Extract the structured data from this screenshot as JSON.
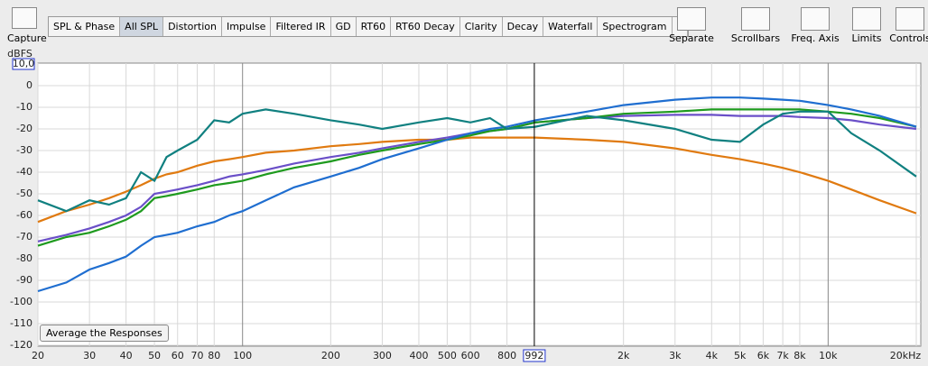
{
  "toolbar": {
    "capture": "Capture",
    "tabs": [
      "SPL & Phase",
      "All SPL",
      "Distortion",
      "Impulse",
      "Filtered IR",
      "GD",
      "RT60",
      "RT60 Decay",
      "Clarity",
      "Decay",
      "Waterfall",
      "Spectrogram",
      "»"
    ],
    "active_tab": 1,
    "tools": [
      "Separate",
      "Scrollbars",
      "Freq. Axis",
      "Limits",
      "Controls"
    ]
  },
  "button": "Average the Responses",
  "chart_data": {
    "type": "line",
    "y_label": "dBFS",
    "log_x": true,
    "grid": true,
    "xlim": [
      20,
      20000
    ],
    "ylim": [
      -120,
      10
    ],
    "yticks": [
      -120,
      -110,
      -100,
      -90,
      -80,
      -70,
      -60,
      -50,
      -40,
      -30,
      -20,
      -10,
      0,
      {
        "value": 10,
        "label": "10,0"
      }
    ],
    "xticks": [
      20,
      30,
      40,
      50,
      60,
      70,
      80,
      100,
      200,
      300,
      400,
      500,
      600,
      800,
      {
        "value": 2000,
        "label": "2k"
      },
      {
        "value": 3000,
        "label": "3k"
      },
      {
        "value": 4000,
        "label": "4k"
      },
      {
        "value": 5000,
        "label": "5k"
      },
      {
        "value": 6000,
        "label": "6k"
      },
      {
        "value": 7000,
        "label": "7k"
      },
      {
        "value": 8000,
        "label": "8k"
      },
      {
        "value": 10000,
        "label": "10k"
      },
      {
        "value": 20000,
        "label": "20kHz"
      }
    ],
    "cursor": 992,
    "x": [
      20,
      25,
      30,
      35,
      40,
      45,
      50,
      55,
      60,
      70,
      80,
      90,
      100,
      120,
      150,
      200,
      250,
      300,
      400,
      500,
      600,
      700,
      800,
      1000,
      1500,
      2000,
      3000,
      4000,
      5000,
      6000,
      7000,
      8000,
      10000,
      12000,
      15000,
      20000
    ],
    "series": [
      {
        "color": "#e07a10",
        "values": [
          -63,
          -58,
          -55,
          -52,
          -49,
          -46,
          -43,
          -41,
          -40,
          -37,
          -35,
          -34,
          -33,
          -31,
          -30,
          -28,
          -27,
          -26,
          -25,
          -25,
          -24,
          -24,
          -24,
          -24,
          -25,
          -26,
          -29,
          -32,
          -34,
          -36,
          -38,
          -40,
          -44,
          -48,
          -53,
          -59
        ]
      },
      {
        "color": "#6a4fc8",
        "values": [
          -72,
          -69,
          -66,
          -63,
          -60,
          -56,
          -50,
          -49,
          -48,
          -46,
          -44,
          -42,
          -41,
          -39,
          -36,
          -33,
          -31,
          -29,
          -26,
          -24,
          -22,
          -21,
          -20,
          -17,
          -15,
          -14,
          -13.5,
          -13.5,
          -14,
          -14,
          -14,
          -14.5,
          -15,
          -16,
          -18,
          -20
        ]
      },
      {
        "color": "#1e9a1e",
        "values": [
          -74,
          -70,
          -68,
          -65,
          -62,
          -58,
          -52,
          -51,
          -50,
          -48,
          -46,
          -45,
          -44,
          -41,
          -38,
          -35,
          -32,
          -30,
          -27,
          -25,
          -23,
          -21,
          -20,
          -17,
          -15,
          -13,
          -12,
          -11,
          -11,
          -11,
          -11,
          -11,
          -12,
          -13,
          -15,
          -19
        ]
      },
      {
        "color": "#1f6ed0",
        "values": [
          -95,
          -91,
          -85,
          -82,
          -79,
          -74,
          -70,
          -69,
          -68,
          -65,
          -63,
          -60,
          -58,
          -53,
          -47,
          -42,
          -38,
          -34,
          -29,
          -25,
          -22,
          -20,
          -19,
          -16,
          -12,
          -9,
          -6.5,
          -5.5,
          -5.5,
          -6,
          -6.5,
          -7,
          -9,
          -11,
          -14,
          -19
        ]
      },
      {
        "color": "#108080",
        "values": [
          -53,
          -58,
          -53,
          -55,
          -52,
          -40,
          -44,
          -33,
          -30,
          -25,
          -16,
          -17,
          -13,
          -11,
          -13,
          -16,
          -18,
          -20,
          -17,
          -15,
          -17,
          -15,
          -20,
          -19,
          -14,
          -16,
          -20,
          -25,
          -26,
          -18,
          -13,
          -12,
          -12,
          -22,
          -30,
          -42
        ]
      }
    ]
  }
}
